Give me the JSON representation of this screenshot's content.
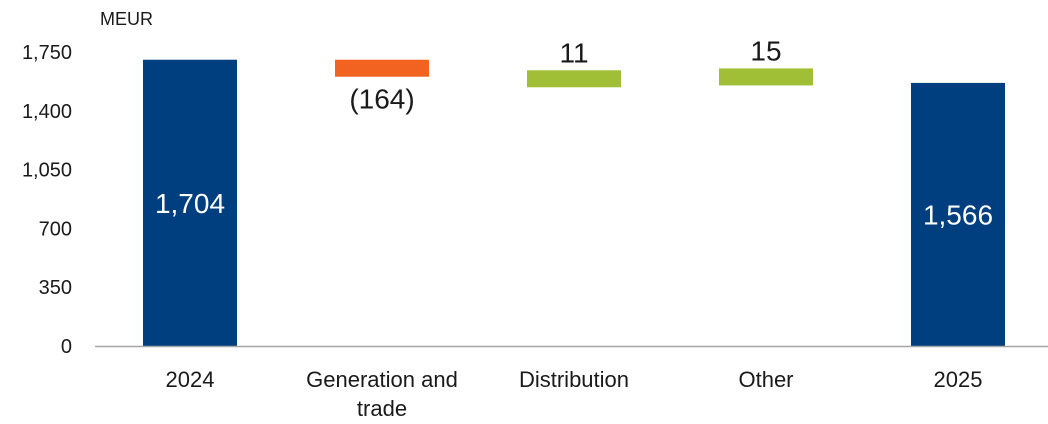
{
  "chart_data": {
    "type": "bar",
    "subtype": "waterfall",
    "unit_label": "MEUR",
    "ylim": [
      0,
      1750
    ],
    "yticks": [
      0,
      350,
      700,
      1050,
      1400,
      1750
    ],
    "ytick_labels": [
      "0",
      "350",
      "700",
      "1,050",
      "1,400",
      "1,750"
    ],
    "grid": false,
    "legend": "none",
    "categories": [
      "2024",
      "Generation and trade",
      "Distribution",
      "Other",
      "2025"
    ],
    "category_lines": [
      [
        "2024"
      ],
      [
        "Generation and",
        "trade"
      ],
      [
        "Distribution"
      ],
      [
        "Other"
      ],
      [
        "2025"
      ]
    ],
    "steps": [
      {
        "kind": "total",
        "value": 1704,
        "label": "1,704"
      },
      {
        "kind": "delta",
        "value": -164,
        "label": "(164)"
      },
      {
        "kind": "delta",
        "value": 11,
        "label": "11"
      },
      {
        "kind": "delta",
        "value": 15,
        "label": "15"
      },
      {
        "kind": "total",
        "value": 1566,
        "label": "1,566"
      }
    ],
    "colors": {
      "total": "#003f7f",
      "decrease": "#f26322",
      "increase": "#a1bf36",
      "axis": "#a6a6a6",
      "text": "#1a1a1a",
      "label_on_bar": "#ffffff"
    }
  }
}
